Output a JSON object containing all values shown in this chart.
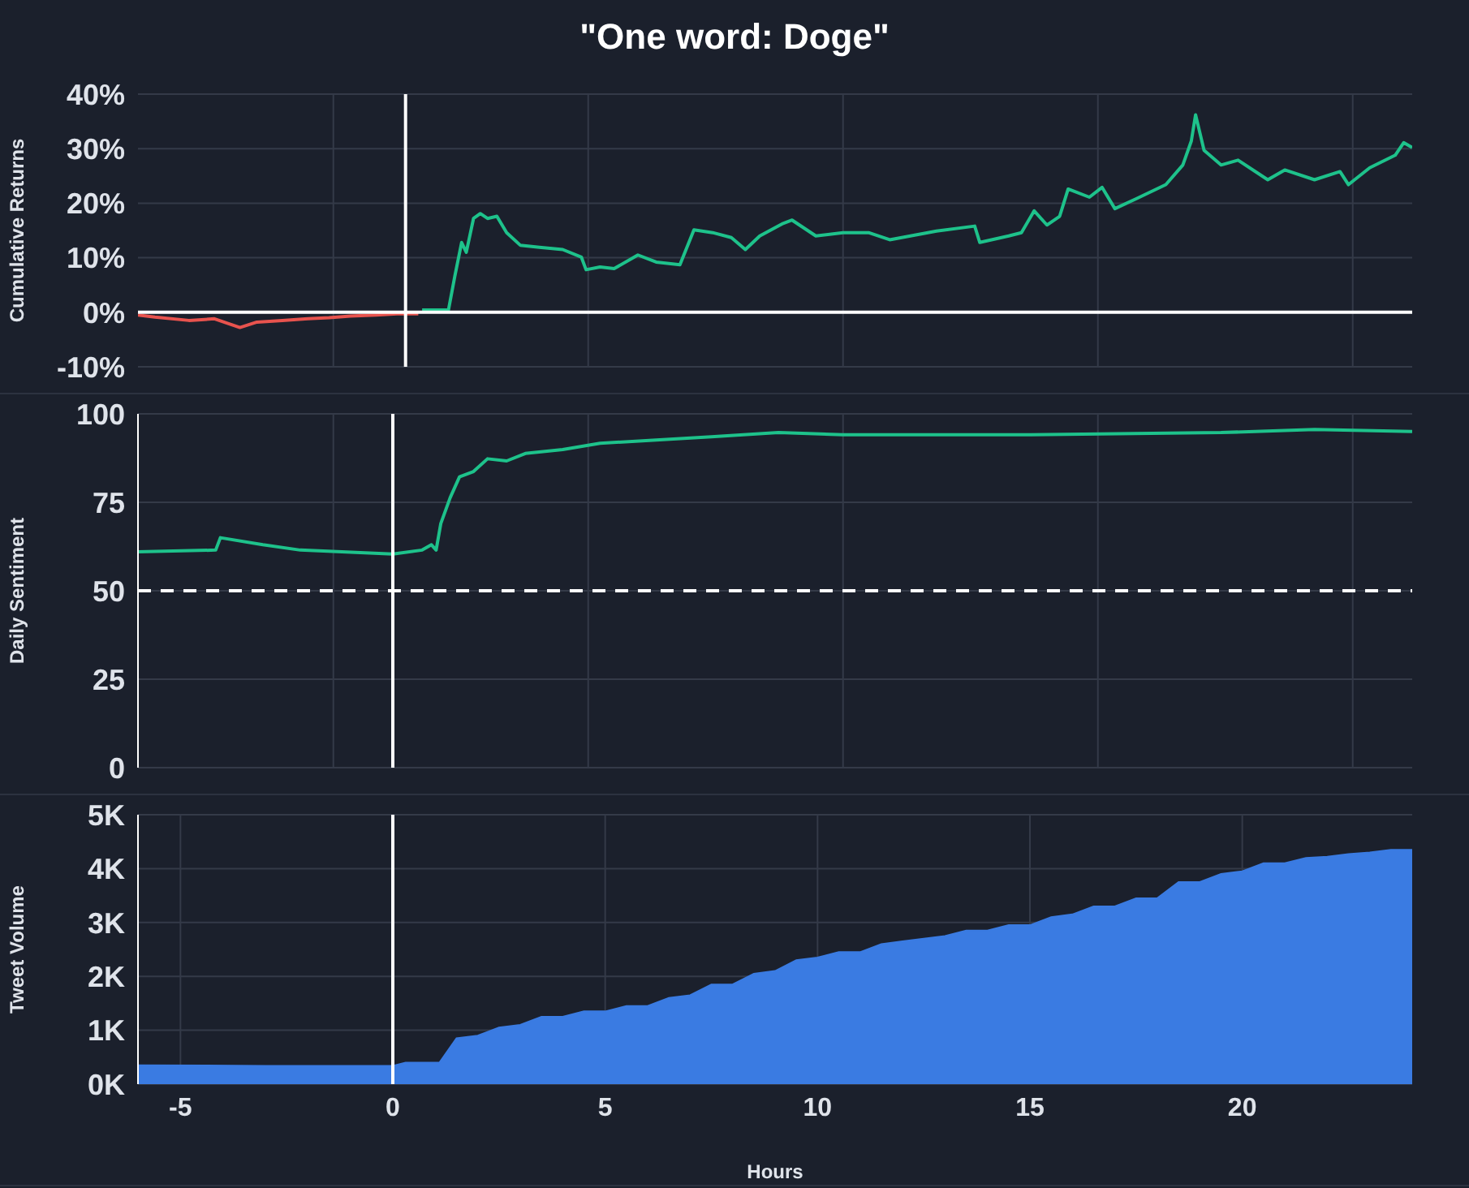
{
  "chart_data": [
    {
      "type": "line",
      "title": "\"One word: Doge\"",
      "ylabel": "Cumulative Returns",
      "xlim": [
        -6,
        24
      ],
      "ylim": [
        -10,
        40
      ],
      "xticks": [
        {
          "value": -1.4,
          "label": null
        },
        {
          "value": 4.6,
          "label": null
        },
        {
          "value": 10.6,
          "label": null
        },
        {
          "value": 16.6,
          "label": null
        },
        {
          "value": 22.6,
          "label": null
        }
      ],
      "yticks": [
        {
          "value": -10,
          "label": "-10%"
        },
        {
          "value": 0,
          "label": "0%"
        },
        {
          "value": 10,
          "label": "10%"
        },
        {
          "value": 20,
          "label": "20%"
        },
        {
          "value": 30,
          "label": "30%"
        },
        {
          "value": 40,
          "label": "40%"
        }
      ],
      "tick_labels": "y",
      "grid": true,
      "ref_lines": [
        {
          "axis": "x",
          "value": 0.3,
          "color": "#ffffff"
        },
        {
          "axis": "y",
          "value": 0,
          "color": "#ffffff"
        }
      ],
      "series": [
        {
          "color": "#e8534e",
          "x": [
            -6,
            -5.6,
            -4.8,
            -4.2,
            -3.6,
            -3.2,
            -2.6,
            -2,
            -1.5,
            -1,
            -0.4,
            0.1,
            0.6
          ],
          "values": [
            -0.5,
            -0.9,
            -1.5,
            -1.2,
            -2.8,
            -1.8,
            -1.5,
            -1.2,
            -1,
            -0.7,
            -0.5,
            -0.3,
            -0.3
          ]
        },
        {
          "color": "#1ec28b",
          "x": [
            0.69,
            1.31,
            1.46,
            1.62,
            1.73,
            1.9,
            2.06,
            2.23,
            2.45,
            2.68,
            3.0,
            3.45,
            4.0,
            4.44,
            4.55,
            4.88,
            5.21,
            5.77,
            6.2,
            6.76,
            7.09,
            7.53,
            7.97,
            8.3,
            8.64,
            9.19,
            9.4,
            9.96,
            10.6,
            11.2,
            11.7,
            12.8,
            13.7,
            13.82,
            14.5,
            14.8,
            15.1,
            15.4,
            15.7,
            15.9,
            16.4,
            16.7,
            17.0,
            17.5,
            18.2,
            18.6,
            18.8,
            18.9,
            19.1,
            19.5,
            19.9,
            20.6,
            21.0,
            21.7,
            22.3,
            22.5,
            23.0,
            23.6,
            23.8,
            24
          ],
          "values": [
            0.4,
            0.4,
            6.6,
            12.8,
            11,
            17.2,
            18.1,
            17.2,
            17.6,
            14.6,
            12.3,
            11.9,
            11.5,
            10.1,
            7.8,
            8.3,
            8,
            10.5,
            9.2,
            8.7,
            15.1,
            14.6,
            13.7,
            11.5,
            14,
            16.3,
            16.9,
            14,
            14.6,
            14.6,
            13.3,
            14.9,
            15.8,
            12.8,
            14,
            14.6,
            18.6,
            16,
            17.6,
            22.6,
            21.1,
            22.9,
            19,
            20.8,
            23.4,
            27,
            31.4,
            36.2,
            29.7,
            27,
            27.9,
            24.3,
            26.1,
            24.3,
            25.8,
            23.4,
            26.5,
            28.8,
            31.1,
            30.2
          ]
        }
      ]
    },
    {
      "type": "line",
      "ylabel": "Daily Sentiment",
      "xlim": [
        -6,
        24
      ],
      "ylim": [
        0,
        100
      ],
      "xticks": [
        {
          "value": -1.4,
          "label": null
        },
        {
          "value": 4.6,
          "label": null
        },
        {
          "value": 10.6,
          "label": null
        },
        {
          "value": 16.6,
          "label": null
        },
        {
          "value": 22.6,
          "label": null
        }
      ],
      "yticks": [
        0,
        25,
        50,
        75,
        100
      ],
      "tick_labels": "y",
      "grid": true,
      "ref_lines": [
        {
          "axis": "x",
          "value": 0,
          "color": "#ffffff"
        },
        {
          "axis": "y",
          "value": 50,
          "color": "#ffffff",
          "line_style": "dashed"
        }
      ],
      "series": [
        {
          "color": "#1ec28b",
          "x": [
            -6,
            -4.17,
            -4.06,
            -3.06,
            -2.18,
            0,
            0.69,
            0.91,
            1.02,
            1.13,
            1.35,
            1.57,
            1.9,
            2.23,
            2.68,
            3.12,
            4.0,
            4.88,
            6.2,
            7.5,
            9.08,
            10.6,
            15,
            19.5,
            21.7,
            24
          ],
          "values": [
            61,
            61.5,
            65,
            63,
            61.5,
            60.4,
            61.5,
            63,
            61.5,
            69,
            76.3,
            82.2,
            83.7,
            87.3,
            86.7,
            88.8,
            89.9,
            91.7,
            92.6,
            93.5,
            94.7,
            94.1,
            94.1,
            94.7,
            95.6,
            95
          ]
        }
      ]
    },
    {
      "type": "area",
      "ylabel": "Tweet Volume",
      "xlabel": "Hours",
      "xlim": [
        -6,
        24
      ],
      "ylim": [
        0,
        5000
      ],
      "xticks": [
        -5,
        0,
        5,
        10,
        15,
        20
      ],
      "yticks": [
        {
          "value": 0,
          "label": "0K"
        },
        {
          "value": 1000,
          "label": "1K"
        },
        {
          "value": 2000,
          "label": "2K"
        },
        {
          "value": 3000,
          "label": "3K"
        },
        {
          "value": 4000,
          "label": "4K"
        },
        {
          "value": 5000,
          "label": "5K"
        }
      ],
      "grid": true,
      "ref_lines": [
        {
          "axis": "x",
          "value": 0,
          "color": "#ffffff"
        }
      ],
      "series": [
        {
          "color": "#3a7be2",
          "x": [
            -6,
            -3,
            0,
            0.3,
            1,
            1.1,
            1.5,
            2,
            2.5,
            3,
            3.5,
            4,
            4.5,
            5,
            5.5,
            6,
            6.5,
            7,
            7.5,
            8,
            8.5,
            9,
            9.5,
            10,
            10.5,
            11,
            11.5,
            12,
            12.5,
            13,
            13.5,
            14,
            14.5,
            15,
            15.5,
            16,
            16.5,
            17,
            17.5,
            18,
            18.5,
            19,
            19.5,
            20,
            20.5,
            21,
            21.5,
            22,
            22.5,
            23,
            23.5,
            24
          ],
          "values": [
            350,
            340,
            340,
            400,
            400,
            400,
            850,
            900,
            1050,
            1100,
            1250,
            1250,
            1350,
            1350,
            1450,
            1450,
            1600,
            1650,
            1850,
            1850,
            2050,
            2100,
            2300,
            2350,
            2450,
            2450,
            2600,
            2650,
            2700,
            2750,
            2850,
            2850,
            2950,
            2950,
            3100,
            3150,
            3300,
            3300,
            3450,
            3450,
            3750,
            3750,
            3900,
            3950,
            4100,
            4100,
            4200,
            4220,
            4270,
            4300,
            4350,
            4350
          ]
        }
      ]
    }
  ]
}
